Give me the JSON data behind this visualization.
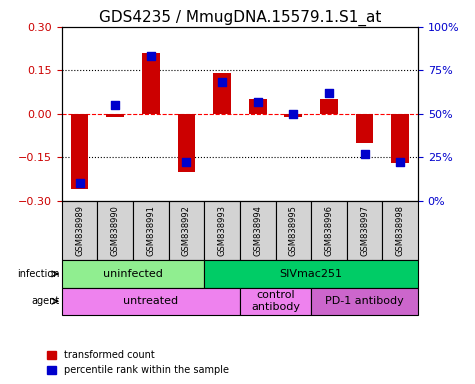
{
  "title": "GDS4235 / MmugDNA.15579.1.S1_at",
  "samples": [
    "GSM838989",
    "GSM838990",
    "GSM838991",
    "GSM838992",
    "GSM838993",
    "GSM838994",
    "GSM838995",
    "GSM838996",
    "GSM838997",
    "GSM838998"
  ],
  "transformed_count": [
    -0.26,
    -0.01,
    0.21,
    -0.2,
    0.14,
    0.05,
    -0.01,
    0.05,
    -0.1,
    -0.17
  ],
  "percentile_rank": [
    10,
    55,
    83,
    22,
    68,
    57,
    50,
    62,
    27,
    22
  ],
  "ylim_left": [
    -0.3,
    0.3
  ],
  "ylim_right": [
    0,
    100
  ],
  "yticks_left": [
    -0.3,
    -0.15,
    0,
    0.15,
    0.3
  ],
  "yticks_right": [
    0,
    25,
    50,
    75,
    100
  ],
  "ytick_labels_right": [
    "0%",
    "25%",
    "50%",
    "75%",
    "100%"
  ],
  "hlines": [
    0.15,
    0,
    -0.15
  ],
  "bar_color": "#cc0000",
  "dot_color": "#0000cc",
  "infection_groups": [
    {
      "label": "uninfected",
      "start": 0,
      "end": 4,
      "color": "#90ee90"
    },
    {
      "label": "SIVmac251",
      "start": 4,
      "end": 10,
      "color": "#00cc66"
    }
  ],
  "agent_groups": [
    {
      "label": "untreated",
      "start": 0,
      "end": 5,
      "color": "#ee82ee"
    },
    {
      "label": "control\nantibody",
      "start": 5,
      "end": 7,
      "color": "#ee82ee"
    },
    {
      "label": "PD-1 antibody",
      "start": 7,
      "end": 10,
      "color": "#cc66cc"
    }
  ],
  "legend_items": [
    {
      "label": "transformed count",
      "color": "#cc0000"
    },
    {
      "label": "percentile rank within the sample",
      "color": "#0000cc"
    }
  ],
  "title_fontsize": 11,
  "axis_label_color_left": "#cc0000",
  "axis_label_color_right": "#0000cc"
}
